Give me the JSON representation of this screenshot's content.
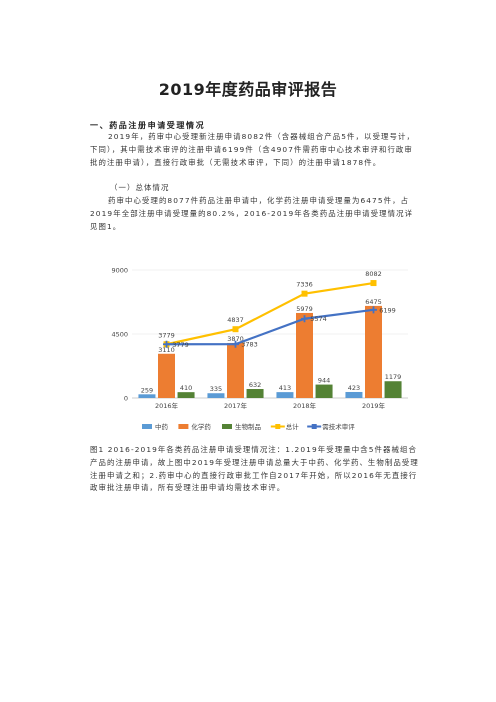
{
  "doc": {
    "title": "2019年度药品审评报告",
    "section1": "一、药品注册申请受理情况",
    "p1": "2019年，药审中心受理新注册申请8082件（含器械组合产品5件，以受理号计，下同），其中需技术审评的注册申请6199件（含4907件需药审中心技术审评和行政审批的注册申请），直接行政审批（无需技术审评，下同）的注册申请1878件。",
    "subsection1": "（一）总体情况",
    "p2": "药审中心受理的8077件药品注册申请中，化学药注册申请受理量为6475件，占2019年全部注册申请受理量的80.2%，2016-2019年各类药品注册申请受理情况详见图1。",
    "caption": "图1 2016-2019年各类药品注册申请受理情况注：1.2019年受理量中含5件器械组合产品的注册申请，故上图中2019年受理注册申请总量大于中药、化学药、生物制品受理注册申请之和；2.药审中心的直接行政审批工作自2017年开始，所以2016年无直接行政审批注册申请，所有受理注册申请均需技术审评。"
  },
  "chart_data": {
    "type": "bar",
    "categories": [
      "2016年",
      "2017年",
      "2018年",
      "2019年"
    ],
    "ylim": [
      0,
      9000
    ],
    "yticks": [
      "0",
      "4500",
      "9000"
    ],
    "series": [
      {
        "name": "中药",
        "kind": "bar",
        "color": "#5b9bd5",
        "values": [
          259,
          335,
          413,
          423
        ]
      },
      {
        "name": "化学药",
        "kind": "bar",
        "color": "#ed7d31",
        "values": [
          3110,
          3870,
          5979,
          6475
        ]
      },
      {
        "name": "生物制品",
        "kind": "bar",
        "color": "#548235",
        "values": [
          410,
          632,
          944,
          1179
        ]
      },
      {
        "name": "总计",
        "kind": "line",
        "color": "#ffc000",
        "values": [
          3779,
          4837,
          7336,
          8082
        ]
      },
      {
        "name": "需技术审评",
        "kind": "line",
        "color": "#4472c4",
        "values": [
          3779,
          3783,
          5574,
          6199
        ]
      }
    ]
  }
}
